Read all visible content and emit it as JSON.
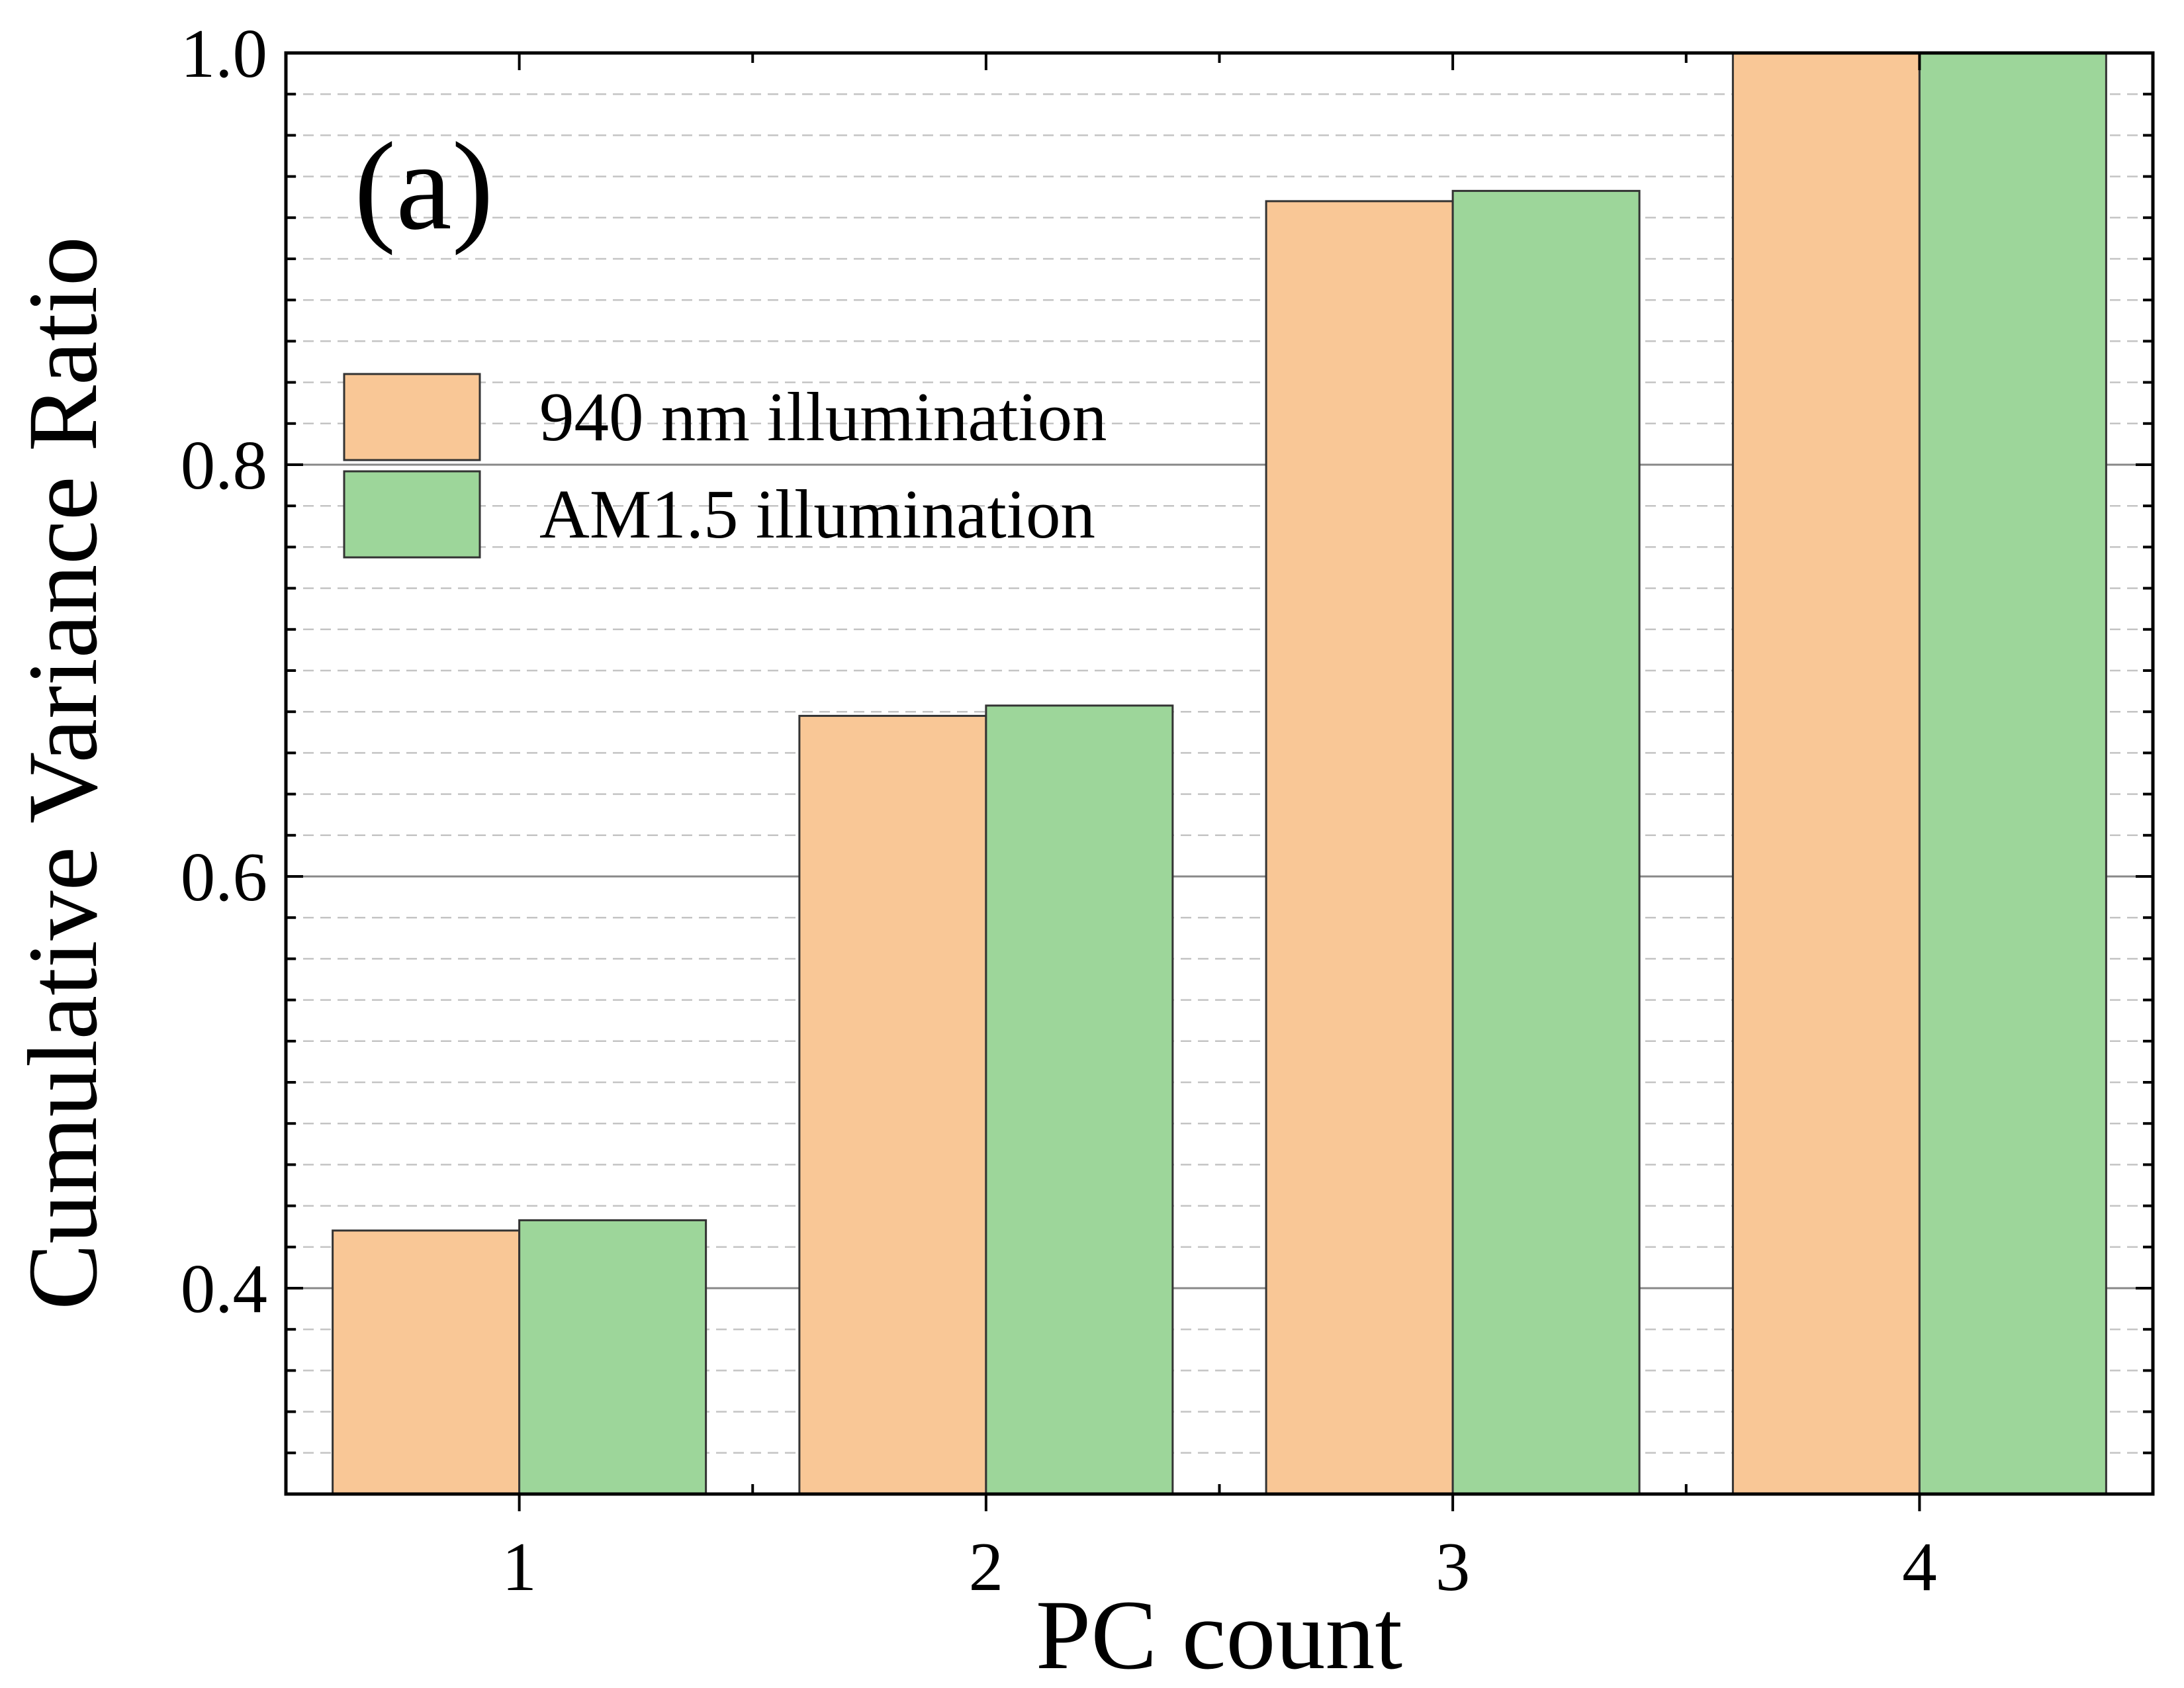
{
  "chart_data": {
    "type": "bar",
    "panel_label": "(a)",
    "xlabel": "PC count",
    "ylabel": "Cumulative Variance Ratio",
    "categories": [
      "1",
      "2",
      "3",
      "4"
    ],
    "ylim": [
      0.3,
      1.0
    ],
    "yticks": [
      0.4,
      0.6,
      0.8,
      1.0
    ],
    "ytick_labels": [
      "0.4",
      "0.6",
      "0.8",
      "1.0"
    ],
    "minor_tick_step": 0.02,
    "grid": "major solid, minor dashed",
    "legend_position": "upper-left",
    "series": [
      {
        "name": "940 nm illumination",
        "values": [
          0.428,
          0.678,
          0.928,
          1.0
        ],
        "color": "#F9C796"
      },
      {
        "name": "AM1.5 illumination",
        "values": [
          0.433,
          0.683,
          0.933,
          1.0
        ],
        "color": "#9DD69A"
      }
    ]
  }
}
